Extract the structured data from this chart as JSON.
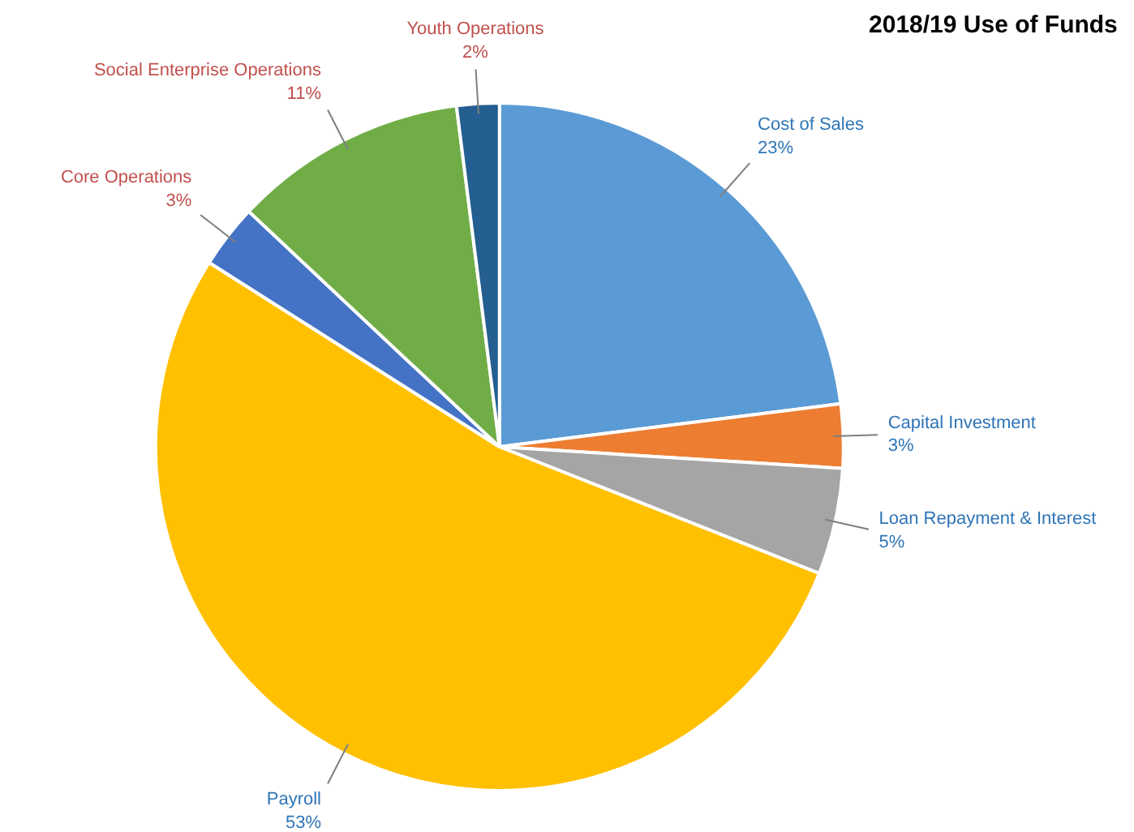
{
  "chart_data": {
    "type": "pie",
    "title": "2018/19 Use of Funds",
    "categories": [
      "Cost of Sales",
      "Capital Investment",
      "Loan Repayment & Interest",
      "Payroll",
      "Core Operations",
      "Social Enterprise Operations",
      "Youth Operations"
    ],
    "values": [
      23,
      3,
      5,
      53,
      3,
      11,
      2
    ],
    "value_labels": [
      "23%",
      "3%",
      "5%",
      "53%",
      "3%",
      "11%",
      "2%"
    ],
    "colors": [
      "#5b9bd5",
      "#ed7d31",
      "#a5a5a5",
      "#ffc000",
      "#4472c4",
      "#70ad47",
      "#255e91"
    ],
    "legend": false
  }
}
